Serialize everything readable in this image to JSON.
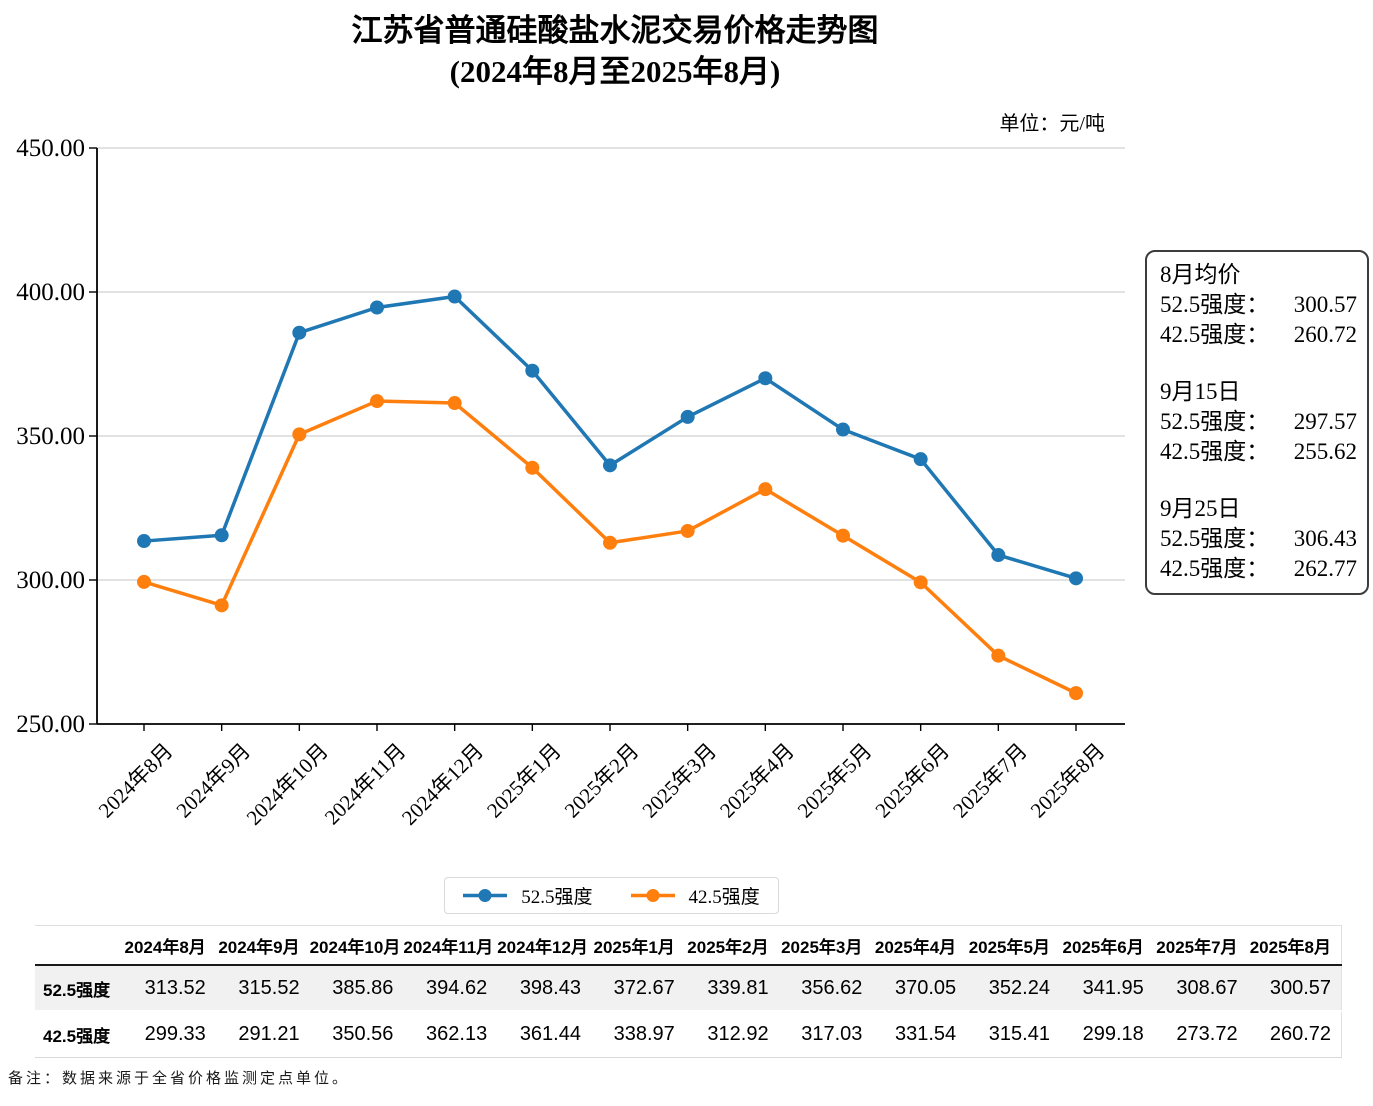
{
  "header": {
    "title": "江苏省普通硅酸盐水泥交易价格走势图",
    "subtitle": "(2024年8月至2025年8月)",
    "unit": "单位：元/吨"
  },
  "chart_data": {
    "type": "line",
    "title": "江苏省普通硅酸盐水泥交易价格走势图(2024年8月至2025年8月)",
    "xlabel": "",
    "ylabel": "元/吨",
    "ylim": [
      250,
      450
    ],
    "yticks": [
      "250.00",
      "300.00",
      "350.00",
      "400.00",
      "450.00"
    ],
    "grid": true,
    "legend_position": "bottom",
    "categories": [
      "2024年8月",
      "2024年9月",
      "2024年10月",
      "2024年11月",
      "2024年12月",
      "2025年1月",
      "2025年2月",
      "2025年3月",
      "2025年4月",
      "2025年5月",
      "2025年6月",
      "2025年7月",
      "2025年8月"
    ],
    "series": [
      {
        "name": "52.5强度",
        "color": "#1f77b4",
        "values": [
          313.52,
          315.52,
          385.86,
          394.62,
          398.43,
          372.67,
          339.81,
          356.62,
          370.05,
          352.24,
          341.95,
          308.67,
          300.57
        ]
      },
      {
        "name": "42.5强度",
        "color": "#ff7f0e",
        "values": [
          299.33,
          291.21,
          350.56,
          362.13,
          361.44,
          338.97,
          312.92,
          317.03,
          331.54,
          315.41,
          299.18,
          273.72,
          260.72
        ]
      }
    ]
  },
  "annotation": {
    "groups": [
      {
        "heading": "8月均价",
        "rows": [
          {
            "label": "52.5强度：",
            "value": "300.57"
          },
          {
            "label": "42.5强度：",
            "value": "260.72"
          }
        ]
      },
      {
        "heading": "9月15日",
        "rows": [
          {
            "label": "52.5强度：",
            "value": "297.57"
          },
          {
            "label": "42.5强度：",
            "value": "255.62"
          }
        ]
      },
      {
        "heading": "9月25日",
        "rows": [
          {
            "label": "52.5强度：",
            "value": "306.43"
          },
          {
            "label": "42.5强度：",
            "value": "262.77"
          }
        ]
      }
    ]
  },
  "legend": {
    "items": [
      {
        "label": "52.5强度",
        "color": "#1f77b4"
      },
      {
        "label": "42.5强度",
        "color": "#ff7f0e"
      }
    ]
  },
  "table": {
    "columns": [
      "2024年8月",
      "2024年9月",
      "2024年10月",
      "2024年11月",
      "2024年12月",
      "2025年1月",
      "2025年2月",
      "2025年3月",
      "2025年4月",
      "2025年5月",
      "2025年6月",
      "2025年7月",
      "2025年8月"
    ],
    "rows": [
      {
        "label": "52.5强度",
        "values": [
          "313.52",
          "315.52",
          "385.86",
          "394.62",
          "398.43",
          "372.67",
          "339.81",
          "356.62",
          "370.05",
          "352.24",
          "341.95",
          "308.67",
          "300.57"
        ]
      },
      {
        "label": "42.5强度",
        "values": [
          "299.33",
          "291.21",
          "350.56",
          "362.13",
          "361.44",
          "338.97",
          "312.92",
          "317.03",
          "331.54",
          "315.41",
          "299.18",
          "273.72",
          "260.72"
        ]
      }
    ]
  },
  "note": "备注：数据来源于全省价格监测定点单位。"
}
